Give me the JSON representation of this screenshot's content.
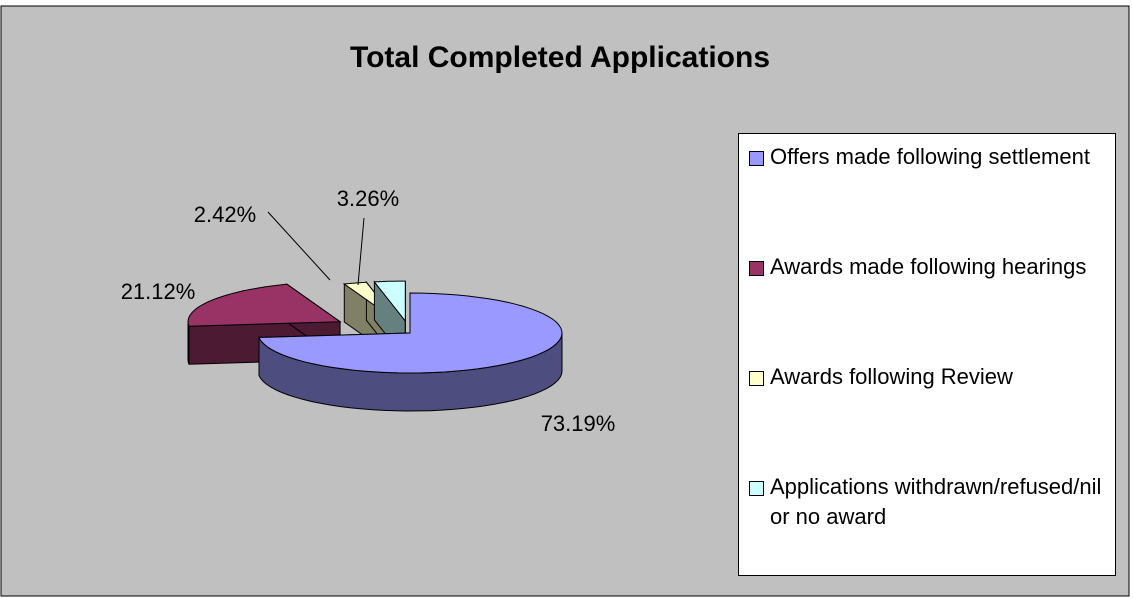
{
  "chart_data": {
    "type": "pie",
    "title": "Total Completed Applications",
    "categories": [
      "Offers made following settlement",
      "Awards made following hearings",
      "Awards following Review",
      "Applications withdrawn/refused/nil or no award"
    ],
    "values": [
      73.19,
      21.12,
      2.42,
      3.26
    ],
    "value_labels": [
      "73.19%",
      "21.12%",
      "2.42%",
      "3.26%"
    ],
    "colors": [
      "#9999ff",
      "#993366",
      "#ffffcc",
      "#ccffff"
    ],
    "legend": "right"
  }
}
